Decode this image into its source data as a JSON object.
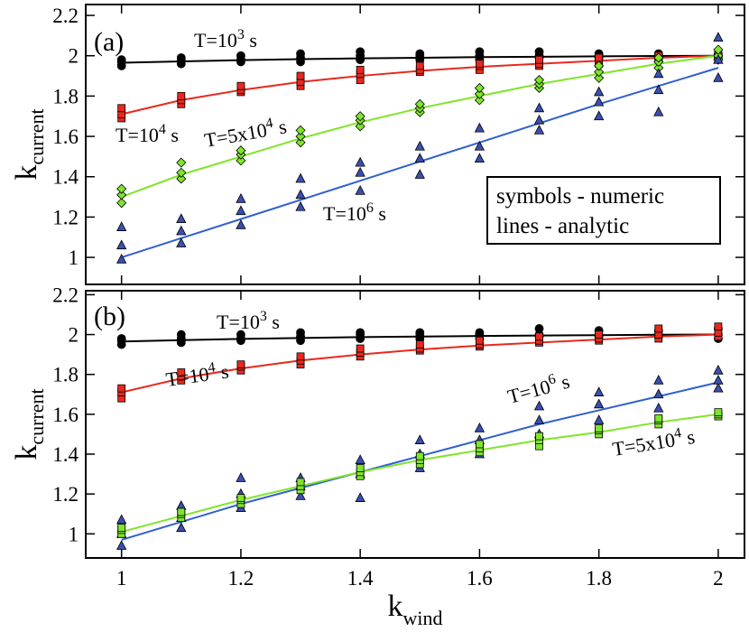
{
  "chart_data": [
    {
      "type": "line",
      "panel_label": "(a)",
      "y_label": {
        "main": "k",
        "sub": "current"
      },
      "legend_text": [
        "symbols - numeric",
        "lines - analytic"
      ],
      "x": [
        1,
        1.1,
        1.2,
        1.3,
        1.4,
        1.5,
        1.6,
        1.7,
        1.8,
        1.9,
        2
      ],
      "xlim": [
        0.94,
        2.044
      ],
      "xticks": [
        1,
        1.2,
        1.4,
        1.6,
        1.8,
        2
      ],
      "ylim": [
        0.866,
        2.254
      ],
      "yticks": [
        1,
        1.2,
        1.4,
        1.6,
        1.8,
        2,
        2.2
      ],
      "series": [
        {
          "name": "T=10",
          "name_exp": "3",
          "name_unit": " s",
          "color": "#000000",
          "marker": "circle",
          "marker_fill": "#000000",
          "values": [
            1.965,
            1.972,
            1.978,
            1.983,
            1.987,
            1.99,
            1.993,
            1.995,
            1.997,
            1.999,
            2.0
          ],
          "numeric": [
            [
              1.95,
              1.97,
              1.98
            ],
            [
              1.96,
              1.98,
              1.99
            ],
            [
              1.97,
              1.98,
              2.0
            ],
            [
              1.97,
              1.99,
              2.01
            ],
            [
              1.98,
              2.0,
              2.02
            ],
            [
              1.98,
              2.0,
              2.01
            ],
            [
              1.98,
              2.0,
              2.02
            ],
            [
              1.99,
              2.0,
              2.02
            ],
            [
              1.99,
              2.0,
              2.01
            ],
            [
              1.99,
              2.0,
              2.01
            ],
            [
              1.99,
              2.0,
              2.01
            ]
          ]
        },
        {
          "name": "T=10",
          "name_exp": "4",
          "name_unit": " s",
          "color": "#e8281e",
          "marker": "square",
          "marker_fill": "#e8281e",
          "values": [
            1.71,
            1.78,
            1.83,
            1.87,
            1.9,
            1.925,
            1.945,
            1.96,
            1.975,
            1.99,
            2.0
          ],
          "numeric": [
            [
              1.69,
              1.71,
              1.74
            ],
            [
              1.76,
              1.78,
              1.8
            ],
            [
              1.82,
              1.83,
              1.85
            ],
            [
              1.85,
              1.87,
              1.9
            ],
            [
              1.88,
              1.91,
              1.93
            ],
            [
              1.92,
              1.93,
              1.95
            ],
            [
              1.93,
              1.95,
              1.96
            ],
            [
              1.95,
              1.96,
              1.98
            ],
            [
              1.96,
              1.98,
              1.99
            ],
            [
              1.98,
              1.99,
              2.0
            ],
            [
              1.99,
              2.0,
              2.01
            ]
          ]
        },
        {
          "name": "T=5x10",
          "name_exp": "4",
          "name_unit": " s",
          "color": "#7fe52a",
          "marker": "diamond",
          "marker_fill": "#7fe52a",
          "values": [
            1.3,
            1.41,
            1.5,
            1.59,
            1.67,
            1.74,
            1.8,
            1.86,
            1.91,
            1.96,
            2.0
          ],
          "numeric": [
            [
              1.27,
              1.31,
              1.34
            ],
            [
              1.39,
              1.42,
              1.47
            ],
            [
              1.48,
              1.51,
              1.53
            ],
            [
              1.57,
              1.6,
              1.63
            ],
            [
              1.65,
              1.68,
              1.7
            ],
            [
              1.72,
              1.74,
              1.76
            ],
            [
              1.78,
              1.81,
              1.84
            ],
            [
              1.84,
              1.86,
              1.88
            ],
            [
              1.89,
              1.92,
              1.95
            ],
            [
              1.94,
              1.97,
              1.99
            ],
            [
              1.98,
              2.0,
              2.03
            ]
          ]
        },
        {
          "name": "T=10",
          "name_exp": "6",
          "name_unit": " s",
          "color": "#2f5fd0",
          "marker": "triangle",
          "marker_fill": "#3a4fb0",
          "values": [
            1.0,
            1.095,
            1.19,
            1.285,
            1.38,
            1.475,
            1.57,
            1.665,
            1.76,
            1.85,
            1.94
          ],
          "numeric": [
            [
              0.99,
              1.06,
              1.15
            ],
            [
              1.07,
              1.13,
              1.19
            ],
            [
              1.16,
              1.23,
              1.29
            ],
            [
              1.25,
              1.31,
              1.39
            ],
            [
              1.33,
              1.42,
              1.47
            ],
            [
              1.41,
              1.49,
              1.55
            ],
            [
              1.49,
              1.55,
              1.64
            ],
            [
              1.63,
              1.68,
              1.74
            ],
            [
              1.7,
              1.77,
              1.82
            ],
            [
              1.72,
              1.83,
              1.91
            ],
            [
              1.89,
              1.98,
              2.09
            ]
          ]
        }
      ]
    },
    {
      "type": "line",
      "panel_label": "(b)",
      "y_label": {
        "main": "k",
        "sub": "current"
      },
      "x_label": {
        "main": "k",
        "sub": "wind"
      },
      "x": [
        1,
        1.1,
        1.2,
        1.3,
        1.4,
        1.5,
        1.6,
        1.7,
        1.8,
        1.9,
        2
      ],
      "xlim": [
        0.94,
        2.044
      ],
      "xticks": [
        1,
        1.2,
        1.4,
        1.6,
        1.8,
        2
      ],
      "ylim": [
        0.879,
        2.22
      ],
      "yticks": [
        1,
        1.2,
        1.4,
        1.6,
        1.8,
        2,
        2.2
      ],
      "series": [
        {
          "name": "T=10",
          "name_exp": "3",
          "name_unit": " s",
          "color": "#000000",
          "marker": "circle",
          "marker_fill": "#000000",
          "values": [
            1.965,
            1.972,
            1.978,
            1.983,
            1.987,
            1.99,
            1.993,
            1.995,
            1.997,
            1.999,
            2.0
          ],
          "numeric": [
            [
              1.95,
              1.97,
              1.98
            ],
            [
              1.96,
              1.98,
              2.0
            ],
            [
              1.97,
              1.98,
              2.0
            ],
            [
              1.97,
              1.99,
              2.01
            ],
            [
              1.98,
              2.0,
              2.01
            ],
            [
              1.98,
              2.0,
              2.01
            ],
            [
              1.98,
              2.0,
              2.01
            ],
            [
              1.99,
              2.0,
              2.03
            ],
            [
              1.99,
              2.0,
              2.02
            ],
            [
              1.99,
              2.0,
              2.02
            ],
            [
              1.98,
              2.0,
              2.03
            ]
          ]
        },
        {
          "name": "T=10",
          "name_exp": "4",
          "name_unit": " s",
          "color": "#e8281e",
          "marker": "square",
          "marker_fill": "#e8281e",
          "values": [
            1.71,
            1.78,
            1.83,
            1.87,
            1.9,
            1.925,
            1.945,
            1.96,
            1.975,
            1.99,
            2.0
          ],
          "numeric": [
            [
              1.68,
              1.71,
              1.73
            ],
            [
              1.77,
              1.79,
              1.81
            ],
            [
              1.82,
              1.84,
              1.85
            ],
            [
              1.85,
              1.87,
              1.89
            ],
            [
              1.89,
              1.91,
              1.93
            ],
            [
              1.92,
              1.93,
              1.95
            ],
            [
              1.94,
              1.95,
              1.97
            ],
            [
              1.96,
              1.97,
              1.99
            ],
            [
              1.97,
              1.98,
              2.0
            ],
            [
              1.98,
              2.0,
              2.03
            ],
            [
              1.99,
              2.01,
              2.04
            ]
          ]
        },
        {
          "name": "T=10",
          "name_exp": "6",
          "name_unit": " s",
          "color": "#2f5fd0",
          "marker": "triangle",
          "marker_fill": "#3a4fb0",
          "values": [
            0.97,
            1.06,
            1.15,
            1.23,
            1.31,
            1.39,
            1.47,
            1.55,
            1.62,
            1.69,
            1.76
          ],
          "numeric": [
            [
              0.94,
              1.0,
              1.07
            ],
            [
              1.03,
              1.08,
              1.14
            ],
            [
              1.13,
              1.2,
              1.28
            ],
            [
              1.19,
              1.24,
              1.28
            ],
            [
              1.18,
              1.3,
              1.37
            ],
            [
              1.33,
              1.4,
              1.47
            ],
            [
              1.4,
              1.47,
              1.53
            ],
            [
              1.5,
              1.57,
              1.64
            ],
            [
              1.57,
              1.65,
              1.71
            ],
            [
              1.63,
              1.7,
              1.77
            ],
            [
              1.73,
              1.77,
              1.82
            ]
          ]
        },
        {
          "name": "T=5x10",
          "name_exp": "4",
          "name_unit": " s",
          "color": "#7fe52a",
          "marker": "square",
          "marker_fill": "#7fe52a",
          "values": [
            1.01,
            1.09,
            1.17,
            1.24,
            1.31,
            1.37,
            1.42,
            1.47,
            1.51,
            1.56,
            1.6
          ],
          "numeric": [
            [
              1.0,
              1.02,
              1.03
            ],
            [
              1.08,
              1.1,
              1.11
            ],
            [
              1.15,
              1.17,
              1.18
            ],
            [
              1.22,
              1.24,
              1.26
            ],
            [
              1.29,
              1.31,
              1.33
            ],
            [
              1.35,
              1.37,
              1.39
            ],
            [
              1.41,
              1.43,
              1.45
            ],
            [
              1.44,
              1.47,
              1.49
            ],
            [
              1.5,
              1.52,
              1.53
            ],
            [
              1.55,
              1.57,
              1.58
            ],
            [
              1.59,
              1.6,
              1.61
            ]
          ]
        }
      ]
    }
  ]
}
